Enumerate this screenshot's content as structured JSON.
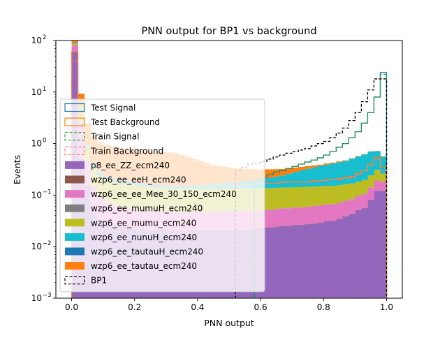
{
  "chart_data": {
    "type": "histogram-stacked",
    "title": "PNN output for BP1 vs background",
    "xlabel": "PNN output",
    "ylabel": "Events",
    "xlim": [
      -0.05,
      1.05
    ],
    "ylim": [
      0.001,
      100
    ],
    "yscale": "log",
    "grid": false,
    "legend_position": "lower-left",
    "bins": {
      "start": 0.0,
      "end": 1.0,
      "count": 50
    },
    "x_ticks": [
      {
        "value": 0.0,
        "label": "0.0"
      },
      {
        "value": 0.2,
        "label": "0.2"
      },
      {
        "value": 0.4,
        "label": "0.4"
      },
      {
        "value": 0.6,
        "label": "0.6"
      },
      {
        "value": 0.8,
        "label": "0.8"
      },
      {
        "value": 1.0,
        "label": "1.0"
      }
    ],
    "y_ticks": [
      {
        "value": 0.001,
        "base": "10",
        "exp": "−3"
      },
      {
        "value": 0.01,
        "base": "10",
        "exp": "−2"
      },
      {
        "value": 0.1,
        "base": "10",
        "exp": "−1"
      },
      {
        "value": 1,
        "base": "10",
        "exp": "0"
      },
      {
        "value": 10,
        "base": "10",
        "exp": "1"
      },
      {
        "value": 100,
        "base": "10",
        "exp": "2"
      }
    ],
    "stacked_series": [
      {
        "name": "p8_ee_ZZ_ecm240",
        "color": "#9467bd",
        "values": [
          60,
          0.5,
          0.15,
          0.045,
          0.03,
          0.026,
          0.025,
          0.024,
          0.023,
          0.022,
          0.021,
          0.021,
          0.02,
          0.02,
          0.02,
          0.019,
          0.019,
          0.019,
          0.019,
          0.019,
          0.019,
          0.019,
          0.019,
          0.019,
          0.02,
          0.02,
          0.02,
          0.02,
          0.02,
          0.021,
          0.022,
          0.022,
          0.023,
          0.024,
          0.024,
          0.025,
          0.025,
          0.026,
          0.027,
          0.028,
          0.03,
          0.03,
          0.033,
          0.038,
          0.042,
          0.05,
          0.055,
          0.08,
          0.12,
          0.12
        ]
      },
      {
        "name": "wzp6_ee_eeH_ecm240",
        "color": "#8c564b",
        "values": [
          0.5,
          0.005,
          0.002,
          0.001,
          0.0006,
          0.0005,
          0.0004,
          0.0004,
          0.0004,
          0.0004,
          0.0004,
          0.0004,
          0.0004,
          0.0004,
          0.0004,
          0.0004,
          0.0004,
          0.0004,
          0.0004,
          0.0004,
          0.0004,
          0.0004,
          0.0004,
          0.0004,
          0.0004,
          0.0004,
          0.0004,
          0.0004,
          0.0004,
          0.0004,
          0.0004,
          0.0004,
          0.0004,
          0.0004,
          0.0004,
          0.0004,
          0.0004,
          0.0004,
          0.0004,
          0.0004,
          0.0004,
          0.0004,
          0.0004,
          0.0004,
          0.0004,
          0.0004,
          0.0004,
          0.0004,
          0.0004,
          0.0004
        ]
      },
      {
        "name": "wzp6_ee_ee_Mee_30_150_ecm240",
        "color": "#e377c2",
        "values": [
          20,
          2.0,
          0.3,
          0.1,
          0.06,
          0.045,
          0.04,
          0.036,
          0.034,
          0.032,
          0.031,
          0.03,
          0.029,
          0.028,
          0.028,
          0.027,
          0.027,
          0.027,
          0.027,
          0.027,
          0.027,
          0.027,
          0.027,
          0.027,
          0.028,
          0.028,
          0.028,
          0.028,
          0.028,
          0.028,
          0.028,
          0.028,
          0.029,
          0.03,
          0.03,
          0.031,
          0.031,
          0.032,
          0.033,
          0.034,
          0.035,
          0.035,
          0.036,
          0.038,
          0.04,
          0.045,
          0.05,
          0.06,
          0.07,
          0.06
        ]
      },
      {
        "name": "wzp6_ee_mumuH_ecm240",
        "color": "#7f7f7f",
        "values": [
          0.3,
          0.003,
          0.001,
          0.0006,
          0.0004,
          0.0003,
          0.0003,
          0.0003,
          0.0003,
          0.0003,
          0.0003,
          0.0003,
          0.0003,
          0.0003,
          0.0003,
          0.0003,
          0.0003,
          0.0003,
          0.0003,
          0.0003,
          0.0003,
          0.0003,
          0.0003,
          0.0003,
          0.0003,
          0.0003,
          0.0003,
          0.0003,
          0.0003,
          0.0003,
          0.0003,
          0.0003,
          0.0003,
          0.0003,
          0.0003,
          0.0003,
          0.0003,
          0.0003,
          0.0003,
          0.0003,
          0.0003,
          0.0003,
          0.0003,
          0.0003,
          0.0003,
          0.0003,
          0.0003,
          0.0003,
          0.0003,
          0.0003
        ]
      },
      {
        "name": "wzp6_ee_mumu_ecm240",
        "color": "#bcbd22",
        "values": [
          5,
          2.5,
          0.4,
          0.2,
          0.15,
          0.13,
          0.12,
          0.115,
          0.11,
          0.105,
          0.1,
          0.1,
          0.095,
          0.09,
          0.09,
          0.088,
          0.086,
          0.085,
          0.085,
          0.085,
          0.085,
          0.085,
          0.085,
          0.085,
          0.085,
          0.085,
          0.085,
          0.085,
          0.085,
          0.085,
          0.085,
          0.085,
          0.085,
          0.085,
          0.085,
          0.085,
          0.085,
          0.085,
          0.085,
          0.085,
          0.085,
          0.085,
          0.085,
          0.085,
          0.085,
          0.085,
          0.09,
          0.1,
          0.12,
          0.08
        ]
      },
      {
        "name": "wzp6_ee_nunuH_ecm240",
        "color": "#17becf",
        "values": [
          3,
          0.3,
          0.1,
          0.05,
          0.035,
          0.028,
          0.024,
          0.022,
          0.02,
          0.019,
          0.018,
          0.018,
          0.018,
          0.018,
          0.018,
          0.019,
          0.02,
          0.021,
          0.022,
          0.024,
          0.026,
          0.028,
          0.03,
          0.033,
          0.036,
          0.04,
          0.045,
          0.05,
          0.055,
          0.06,
          0.07,
          0.08,
          0.09,
          0.1,
          0.12,
          0.14,
          0.16,
          0.18,
          0.2,
          0.22,
          0.24,
          0.26,
          0.28,
          0.3,
          0.34,
          0.38,
          0.42,
          0.46,
          0.4,
          0.3
        ]
      },
      {
        "name": "wzp6_ee_tautauH_ecm240",
        "color": "#1f77b4",
        "values": [
          0.1,
          0.001,
          0.0005,
          0.0003,
          0.0002,
          0.0002,
          0.0002,
          0.0002,
          0.0002,
          0.0002,
          0.0002,
          0.0002,
          0.0002,
          0.0002,
          0.0002,
          0.0002,
          0.0002,
          0.0002,
          0.0002,
          0.0002,
          0.0002,
          0.0002,
          0.0002,
          0.0002,
          0.0002,
          0.0002,
          0.0002,
          0.0002,
          0.0002,
          0.0002,
          0.0002,
          0.0002,
          0.0002,
          0.0002,
          0.0002,
          0.0002,
          0.0002,
          0.0002,
          0.0002,
          0.0002,
          0.0002,
          0.0002,
          0.0002,
          0.0002,
          0.0002,
          0.0002,
          0.0002,
          0.0002,
          0.0002,
          0.0002
        ]
      },
      {
        "name": "wzp6_ee_tautau_ecm240",
        "color": "#ff7f0e",
        "values": [
          10,
          4,
          1.5,
          1.0,
          0.8,
          0.72,
          0.68,
          0.65,
          0.62,
          0.6,
          0.58,
          0.56,
          0.55,
          0.54,
          0.53,
          0.52,
          0.5,
          0.45,
          0.4,
          0.35,
          0.3,
          0.26,
          0.22,
          0.2,
          0.18,
          0.16,
          0.15,
          0.14,
          0.13,
          0.12,
          0.11,
          0.1,
          0.09,
          0.08,
          0.07,
          0.06,
          0.05,
          0.04,
          0.03,
          0.02,
          0.02,
          0.015,
          0.015,
          0.01,
          0.01,
          0.01,
          0.008,
          0.005,
          0.005,
          0.003
        ]
      }
    ],
    "step_series": [
      {
        "name": "Test Signal",
        "color": "#1f77b4",
        "dashed": false,
        "hollow": true,
        "values": [
          0.001,
          0.001,
          0.001,
          0.001,
          0.001,
          0.001,
          0.001,
          0.001,
          0.001,
          0.001,
          0.001,
          0.001,
          0.001,
          0.001,
          0.001,
          0.001,
          0.001,
          0.001,
          0.001,
          0.001,
          0.001,
          0.001,
          0.001,
          0.001,
          0.001,
          0.001,
          0.001,
          0.001,
          0.001,
          0.2,
          0.22,
          0.25,
          0.28,
          0.3,
          0.33,
          0.36,
          0.4,
          0.44,
          0.48,
          0.53,
          0.6,
          0.7,
          0.85,
          1.0,
          1.3,
          1.7,
          2.5,
          4.0,
          8.0,
          24
        ]
      },
      {
        "name": "Test Background",
        "color": "#ff7f0e",
        "dashed": false,
        "hollow": true,
        "values": [
          60,
          4,
          1.0,
          0.5,
          0.32,
          0.26,
          0.23,
          0.21,
          0.2,
          0.19,
          0.18,
          0.17,
          0.17,
          0.16,
          0.16,
          0.15,
          0.15,
          0.15,
          0.15,
          0.15,
          0.15,
          0.15,
          0.15,
          0.15,
          0.15,
          0.15,
          0.16,
          0.16,
          0.16,
          0.17,
          0.17,
          0.17,
          0.17,
          0.18,
          0.18,
          0.18,
          0.18,
          0.18,
          0.19,
          0.19,
          0.2,
          0.2,
          0.21,
          0.22,
          0.23,
          0.26,
          0.3,
          0.4,
          0.55,
          0.35
        ]
      },
      {
        "name": "Train Signal",
        "color": "#2ca02c",
        "dashed": true,
        "hollow": true,
        "values": [
          0.001,
          0.001,
          0.001,
          0.001,
          0.001,
          0.001,
          0.001,
          0.001,
          0.001,
          0.001,
          0.001,
          0.001,
          0.001,
          0.001,
          0.001,
          0.001,
          0.001,
          0.001,
          0.001,
          0.001,
          0.001,
          0.001,
          0.001,
          0.001,
          0.001,
          0.001,
          0.001,
          0.001,
          0.001,
          0.2,
          0.22,
          0.25,
          0.28,
          0.3,
          0.33,
          0.36,
          0.4,
          0.44,
          0.48,
          0.53,
          0.6,
          0.7,
          0.85,
          1.0,
          1.3,
          1.7,
          2.5,
          4.0,
          8.0,
          22
        ]
      },
      {
        "name": "Train Background",
        "color": "#ff7b7b",
        "dashed": true,
        "hollow": true,
        "values": [
          40,
          3.5,
          0.9,
          0.45,
          0.3,
          0.25,
          0.22,
          0.2,
          0.19,
          0.18,
          0.17,
          0.165,
          0.16,
          0.155,
          0.15,
          0.15,
          0.15,
          0.15,
          0.15,
          0.15,
          0.15,
          0.15,
          0.15,
          0.15,
          0.15,
          0.15,
          0.155,
          0.16,
          0.16,
          0.165,
          0.17,
          0.17,
          0.17,
          0.175,
          0.18,
          0.18,
          0.18,
          0.18,
          0.185,
          0.19,
          0.19,
          0.2,
          0.2,
          0.21,
          0.22,
          0.25,
          0.3,
          0.38,
          0.5,
          0.3
        ]
      },
      {
        "name": "BP1",
        "color": "#000000",
        "dashed": true,
        "hollow": true,
        "values": [
          0.001,
          0.001,
          0.001,
          0.001,
          0.001,
          0.001,
          0.001,
          0.001,
          0.001,
          0.001,
          0.001,
          0.001,
          0.001,
          0.001,
          0.001,
          0.001,
          0.001,
          0.001,
          0.001,
          0.001,
          0.001,
          0.001,
          0.001,
          0.001,
          0.001,
          0.001,
          0.3,
          0.35,
          0.4,
          0.42,
          0.45,
          0.5,
          0.55,
          0.6,
          0.65,
          0.7,
          0.75,
          0.8,
          0.9,
          1.0,
          1.1,
          1.3,
          1.6,
          2.0,
          2.8,
          4.0,
          6.5,
          11,
          18,
          18
        ]
      }
    ],
    "legend": [
      {
        "label": "Test Signal",
        "style": "hollow",
        "color": "#1f77b4",
        "dashed": false
      },
      {
        "label": "Test Background",
        "style": "hollow",
        "color": "#ff7f0e",
        "dashed": false
      },
      {
        "label": "Train Signal",
        "style": "hollow",
        "color": "#2ca02c",
        "dashed": true
      },
      {
        "label": "Train Background",
        "style": "hollow",
        "color": "#ff7b7b",
        "dashed": true
      },
      {
        "label": "p8_ee_ZZ_ecm240",
        "style": "filled",
        "color": "#9467bd",
        "dashed": false
      },
      {
        "label": "wzp6_ee_eeH_ecm240",
        "style": "filled",
        "color": "#8c564b",
        "dashed": false
      },
      {
        "label": "wzp6_ee_ee_Mee_30_150_ecm240",
        "style": "filled",
        "color": "#e377c2",
        "dashed": false
      },
      {
        "label": "wzp6_ee_mumuH_ecm240",
        "style": "filled",
        "color": "#7f7f7f",
        "dashed": false
      },
      {
        "label": "wzp6_ee_mumu_ecm240",
        "style": "filled",
        "color": "#bcbd22",
        "dashed": false
      },
      {
        "label": "wzp6_ee_nunuH_ecm240",
        "style": "filled",
        "color": "#17becf",
        "dashed": false
      },
      {
        "label": "wzp6_ee_tautauH_ecm240",
        "style": "filled",
        "color": "#1f77b4",
        "dashed": false
      },
      {
        "label": "wzp6_ee_tautau_ecm240",
        "style": "filled",
        "color": "#ff7f0e",
        "dashed": false
      },
      {
        "label": "BP1",
        "style": "hollow",
        "color": "#000000",
        "dashed": true
      }
    ]
  }
}
